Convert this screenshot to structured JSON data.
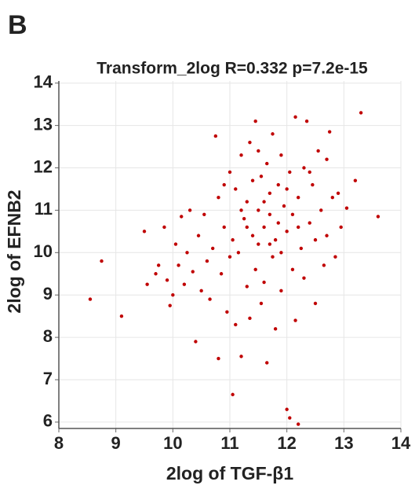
{
  "panel_label": "B",
  "chart_data": {
    "type": "scatter",
    "title": "Transform_2log R=0.332 p=7.2e-15",
    "x_label": "2log of TGF-β1",
    "y_label": "2log of EFNB2",
    "xlim": [
      8,
      14
    ],
    "ylim": [
      5.85,
      14.05
    ],
    "xticks": [
      8,
      9,
      10,
      11,
      12,
      13,
      14
    ],
    "yticks": [
      6,
      7,
      8,
      9,
      10,
      11,
      12,
      13,
      14
    ],
    "grid": true,
    "color": "#c00000",
    "x": [
      8.55,
      8.75,
      9.1,
      9.5,
      9.55,
      9.75,
      9.7,
      9.85,
      9.9,
      9.95,
      10.0,
      10.05,
      10.1,
      10.15,
      10.2,
      10.25,
      10.3,
      10.35,
      10.4,
      10.45,
      10.5,
      10.55,
      10.6,
      10.65,
      10.7,
      10.75,
      10.8,
      10.8,
      10.85,
      10.9,
      10.95,
      11.0,
      11.0,
      11.05,
      11.05,
      11.1,
      11.1,
      11.15,
      11.2,
      11.2,
      11.25,
      11.3,
      11.3,
      11.35,
      11.35,
      11.4,
      11.45,
      11.45,
      11.5,
      11.5,
      11.55,
      11.55,
      11.6,
      11.6,
      11.65,
      11.65,
      11.7,
      11.7,
      11.75,
      11.75,
      11.8,
      11.8,
      11.85,
      11.85,
      11.9,
      11.9,
      11.95,
      12.0,
      12.0,
      12.05,
      12.05,
      12.1,
      12.1,
      12.15,
      12.15,
      12.2,
      12.2,
      12.25,
      12.3,
      12.3,
      12.35,
      12.4,
      12.45,
      12.5,
      12.5,
      12.55,
      12.6,
      12.65,
      12.7,
      12.7,
      12.75,
      12.8,
      12.85,
      12.9,
      12.95,
      13.05,
      13.2,
      13.3,
      13.6,
      11.4,
      11.6,
      11.9,
      11.3,
      12.0,
      11.7,
      11.2,
      12.2,
      11.5,
      10.9,
      12.4
    ],
    "values": [
      8.9,
      9.8,
      8.5,
      10.5,
      9.25,
      9.7,
      9.5,
      10.6,
      9.35,
      8.75,
      9.0,
      10.2,
      9.7,
      10.85,
      9.25,
      10.0,
      11.0,
      9.55,
      7.9,
      10.4,
      9.1,
      10.9,
      9.8,
      8.9,
      10.1,
      12.75,
      7.5,
      11.3,
      9.5,
      10.6,
      8.6,
      11.9,
      9.9,
      6.65,
      10.3,
      8.3,
      11.5,
      10.0,
      7.55,
      12.3,
      10.8,
      9.2,
      11.2,
      12.6,
      8.45,
      10.4,
      13.1,
      9.6,
      11.0,
      10.2,
      8.8,
      11.8,
      10.6,
      9.3,
      7.4,
      12.1,
      10.9,
      11.4,
      12.8,
      9.9,
      10.3,
      8.2,
      11.6,
      10.7,
      12.3,
      9.1,
      11.1,
      6.3,
      10.5,
      6.1,
      11.9,
      9.6,
      10.9,
      13.2,
      8.4,
      5.95,
      11.3,
      10.1,
      12.0,
      9.4,
      13.1,
      10.7,
      11.6,
      8.8,
      10.3,
      12.4,
      11.0,
      9.7,
      12.2,
      10.4,
      12.85,
      11.3,
      9.9,
      11.4,
      10.6,
      11.05,
      11.7,
      13.3,
      10.85,
      11.7,
      11.2,
      10.0,
      10.6,
      11.5,
      10.2,
      11.0,
      10.6,
      12.4,
      11.6,
      11.9
    ]
  }
}
